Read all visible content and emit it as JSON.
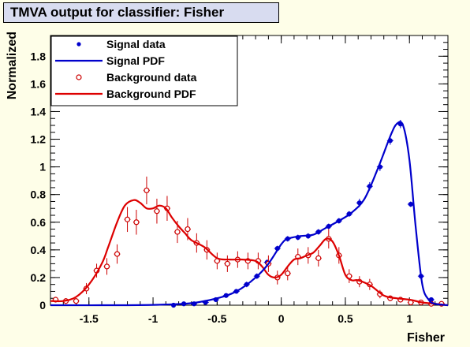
{
  "title": "TMVA output for classifier: Fisher",
  "chart_data": {
    "type": "line",
    "xlabel": "Fisher",
    "ylabel": "Normalized",
    "xlim": [
      -1.8,
      1.3
    ],
    "ylim": [
      0,
      1.95
    ],
    "xticks": [
      -1.5,
      -1,
      -0.5,
      0,
      0.5,
      1
    ],
    "xtick_labels": [
      "-1.5",
      "-1",
      "-0.5",
      "0",
      "0.5",
      "1"
    ],
    "yticks": [
      0,
      0.2,
      0.4,
      0.6,
      0.8,
      1,
      1.2,
      1.4,
      1.6,
      1.8
    ],
    "ytick_labels": [
      "0",
      "0.2",
      "0.4",
      "0.6",
      "0.8",
      "1",
      "1.2",
      "1.4",
      "1.6",
      "1.8"
    ],
    "legend_position": "top-left",
    "grid": false,
    "series": [
      {
        "name": "Signal data",
        "style": "markers-filled",
        "color": "#0000cc",
        "x": [
          -0.84,
          -0.76,
          -0.68,
          -0.59,
          -0.51,
          -0.43,
          -0.35,
          -0.27,
          -0.19,
          -0.11,
          -0.03,
          0.05,
          0.13,
          0.21,
          0.29,
          0.37,
          0.45,
          0.53,
          0.61,
          0.69,
          0.77,
          0.85,
          0.93,
          1.01,
          1.09,
          1.17,
          1.25
        ],
        "y": [
          0.0,
          0.01,
          0.01,
          0.02,
          0.04,
          0.07,
          0.1,
          0.15,
          0.21,
          0.31,
          0.41,
          0.48,
          0.49,
          0.5,
          0.53,
          0.57,
          0.61,
          0.66,
          0.74,
          0.86,
          1.0,
          1.19,
          1.31,
          0.73,
          0.21,
          0.04,
          0.01
        ],
        "yerr": [
          0.01,
          0.01,
          0.01,
          0.01,
          0.01,
          0.01,
          0.01,
          0.02,
          0.02,
          0.02,
          0.02,
          0.02,
          0.02,
          0.02,
          0.02,
          0.02,
          0.02,
          0.02,
          0.03,
          0.03,
          0.03,
          0.03,
          0.03,
          0.02,
          0.02,
          0.01,
          0.01
        ]
      },
      {
        "name": "Signal PDF",
        "style": "line",
        "color": "#0000cc",
        "x": [
          -1.8,
          -1.2,
          -0.9,
          -0.7,
          -0.5,
          -0.35,
          -0.2,
          -0.1,
          0.0,
          0.05,
          0.15,
          0.25,
          0.35,
          0.45,
          0.55,
          0.65,
          0.75,
          0.85,
          0.9,
          0.95,
          1.0,
          1.05,
          1.1,
          1.15,
          1.2,
          1.3
        ],
        "y": [
          0.0,
          0.0,
          0.005,
          0.015,
          0.05,
          0.1,
          0.2,
          0.3,
          0.44,
          0.48,
          0.5,
          0.51,
          0.56,
          0.61,
          0.67,
          0.77,
          0.98,
          1.22,
          1.31,
          1.3,
          1.05,
          0.55,
          0.15,
          0.04,
          0.01,
          0.0
        ]
      },
      {
        "name": "Background data",
        "style": "markers-open",
        "color": "#cc0000",
        "x": [
          -1.76,
          -1.68,
          -1.6,
          -1.52,
          -1.44,
          -1.36,
          -1.28,
          -1.2,
          -1.13,
          -1.05,
          -0.97,
          -0.89,
          -0.81,
          -0.73,
          -0.66,
          -0.58,
          -0.5,
          -0.42,
          -0.34,
          -0.26,
          -0.18,
          -0.1,
          -0.03,
          0.05,
          0.13,
          0.21,
          0.29,
          0.37,
          0.45,
          0.53,
          0.61,
          0.69,
          0.77,
          0.85,
          0.93,
          1.01,
          1.09,
          1.17,
          1.25
        ],
        "y": [
          0.04,
          0.03,
          0.03,
          0.12,
          0.25,
          0.28,
          0.37,
          0.62,
          0.6,
          0.83,
          0.68,
          0.7,
          0.53,
          0.55,
          0.45,
          0.4,
          0.32,
          0.3,
          0.33,
          0.32,
          0.32,
          0.3,
          0.2,
          0.23,
          0.35,
          0.36,
          0.34,
          0.48,
          0.36,
          0.21,
          0.17,
          0.15,
          0.08,
          0.05,
          0.04,
          0.02,
          0.02,
          0.01,
          0.01
        ],
        "yerr": [
          0.02,
          0.02,
          0.02,
          0.04,
          0.05,
          0.06,
          0.07,
          0.09,
          0.09,
          0.1,
          0.09,
          0.09,
          0.08,
          0.08,
          0.07,
          0.07,
          0.06,
          0.06,
          0.06,
          0.06,
          0.06,
          0.06,
          0.05,
          0.05,
          0.06,
          0.06,
          0.06,
          0.07,
          0.06,
          0.05,
          0.04,
          0.04,
          0.03,
          0.02,
          0.02,
          0.02,
          0.02,
          0.01,
          0.01
        ]
      },
      {
        "name": "Background PDF",
        "style": "line",
        "color": "#dd0000",
        "x": [
          -1.8,
          -1.7,
          -1.6,
          -1.5,
          -1.4,
          -1.35,
          -1.28,
          -1.22,
          -1.15,
          -1.1,
          -1.05,
          -1.0,
          -0.95,
          -0.9,
          -0.85,
          -0.8,
          -0.75,
          -0.7,
          -0.6,
          -0.5,
          -0.4,
          -0.3,
          -0.2,
          -0.15,
          -0.1,
          -0.05,
          0.0,
          0.05,
          0.1,
          0.15,
          0.2,
          0.25,
          0.3,
          0.35,
          0.4,
          0.45,
          0.5,
          0.55,
          0.6,
          0.7,
          0.8,
          0.9,
          1.0,
          1.1,
          1.2,
          1.3
        ],
        "y": [
          0.03,
          0.03,
          0.06,
          0.15,
          0.3,
          0.42,
          0.6,
          0.72,
          0.76,
          0.74,
          0.7,
          0.7,
          0.72,
          0.7,
          0.63,
          0.57,
          0.52,
          0.47,
          0.42,
          0.34,
          0.33,
          0.33,
          0.32,
          0.28,
          0.22,
          0.2,
          0.22,
          0.28,
          0.33,
          0.34,
          0.36,
          0.38,
          0.43,
          0.48,
          0.46,
          0.36,
          0.22,
          0.18,
          0.18,
          0.14,
          0.07,
          0.05,
          0.04,
          0.02,
          0.01,
          0.0
        ]
      }
    ]
  }
}
